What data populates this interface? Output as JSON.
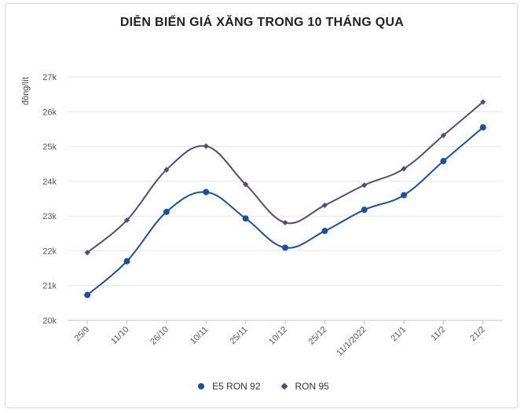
{
  "chart_data": {
    "type": "line",
    "title": "DIỄN BIẾN GIÁ XĂNG TRONG 10 THÁNG QUA",
    "ylabel": "đồng/lít",
    "xlabel": "",
    "categories": [
      "25/9",
      "11/10",
      "26/10",
      "10/11",
      "25/11",
      "10/12",
      "25/12",
      "11/1/2022",
      "21/1",
      "11/2",
      "21/2"
    ],
    "ylim": [
      20000,
      27000
    ],
    "yticks": [
      20000,
      21000,
      22000,
      23000,
      24000,
      25000,
      26000,
      27000
    ],
    "ytick_labels": [
      "20k",
      "21k",
      "22k",
      "23k",
      "24k",
      "25k",
      "26k",
      "27k"
    ],
    "grid": true,
    "legend_position": "bottom",
    "series": [
      {
        "name": "E5 RON 92",
        "color": "#1f4e9c",
        "marker": "circle",
        "values": [
          20730,
          21700,
          23120,
          23690,
          22930,
          22090,
          22570,
          23180,
          23600,
          24580,
          25550
        ]
      },
      {
        "name": "RON 95",
        "color": "#594b6e",
        "marker": "diamond",
        "values": [
          21950,
          22880,
          24330,
          25010,
          23910,
          22810,
          23310,
          23890,
          24360,
          25320,
          26280
        ]
      }
    ]
  }
}
